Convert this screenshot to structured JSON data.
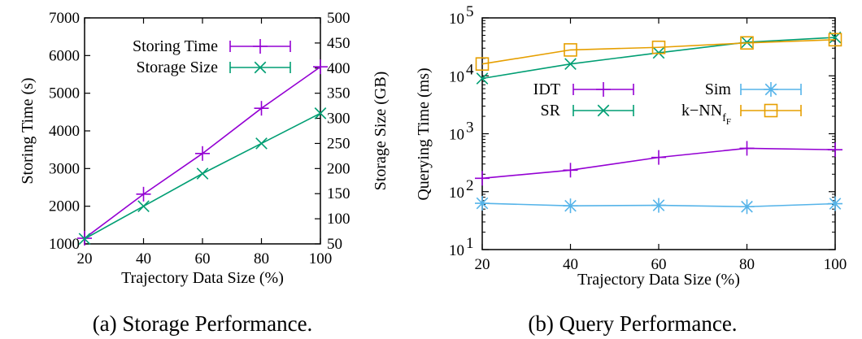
{
  "chart_data": [
    {
      "type": "line",
      "caption": "(a)  Storage Performance.",
      "xlabel": "Trajectory Data Size (%)",
      "ylabel": "Storing Time (s)",
      "y2label": "Storage Size (GB)",
      "x": [
        20,
        40,
        60,
        80,
        100
      ],
      "xticks": [
        20,
        40,
        60,
        80,
        100
      ],
      "xlim": [
        20,
        100
      ],
      "ylim": [
        1000,
        7000
      ],
      "yticks": [
        1000,
        2000,
        3000,
        4000,
        5000,
        6000,
        7000
      ],
      "y2lim": [
        50,
        500
      ],
      "y2ticks": [
        50,
        100,
        150,
        200,
        250,
        300,
        350,
        400,
        450,
        500
      ],
      "legend_position": "top-left",
      "series": [
        {
          "name": "Storing Time",
          "axis": "left",
          "marker": "plus",
          "color": "#9400D3",
          "values": [
            1150,
            2320,
            3400,
            4600,
            5700
          ]
        },
        {
          "name": "Storage Size",
          "axis": "right",
          "marker": "x",
          "color": "#009E73",
          "values": [
            60,
            125,
            190,
            250,
            310
          ]
        }
      ]
    },
    {
      "type": "line",
      "caption": "(b)  Query Performance.",
      "xlabel": "Trajectory Data Size (%)",
      "ylabel": "Querying Time (ms)",
      "x": [
        20,
        40,
        60,
        80,
        100
      ],
      "xticks": [
        20,
        40,
        60,
        80,
        100
      ],
      "xlim": [
        20,
        100
      ],
      "yscale": "log",
      "ylim": [
        10,
        100000
      ],
      "yticks": [
        {
          "base": "10",
          "exp": "1"
        },
        {
          "base": "10",
          "exp": "2"
        },
        {
          "base": "10",
          "exp": "3"
        },
        {
          "base": "10",
          "exp": "4"
        },
        {
          "base": "10",
          "exp": "5"
        }
      ],
      "legend_position": "top-center",
      "series": [
        {
          "name": "IDT",
          "marker": "plus",
          "color": "#9400D3",
          "values": [
            170,
            235,
            390,
            560,
            530
          ]
        },
        {
          "name": "Sim",
          "marker": "asterisk",
          "color": "#56B4E9",
          "values": [
            63,
            57,
            58,
            55,
            62
          ]
        },
        {
          "name": "SR",
          "marker": "x",
          "color": "#009E73",
          "values": [
            9000,
            16000,
            25000,
            38000,
            46000
          ]
        },
        {
          "name_main": "k−NN",
          "name_sub": "f",
          "name_subsub": "F",
          "marker": "square",
          "color": "#E69F00",
          "values": [
            16000,
            28000,
            31000,
            37000,
            42000
          ]
        }
      ]
    }
  ]
}
